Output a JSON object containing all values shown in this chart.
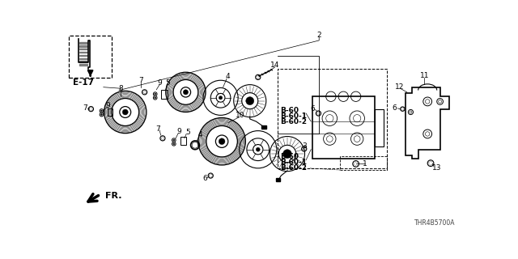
{
  "bg_color": "#ffffff",
  "part_number": "THR4B5700A",
  "ref_label": "E-17",
  "fr_label": "FR.",
  "b60_upper": [
    "B-60",
    "B-60-1",
    "B-60-2"
  ],
  "b60_lower": [
    "B-60",
    "B-60-1",
    "B-60-2"
  ],
  "line_color": "#000000",
  "gray": "#aaaaaa"
}
